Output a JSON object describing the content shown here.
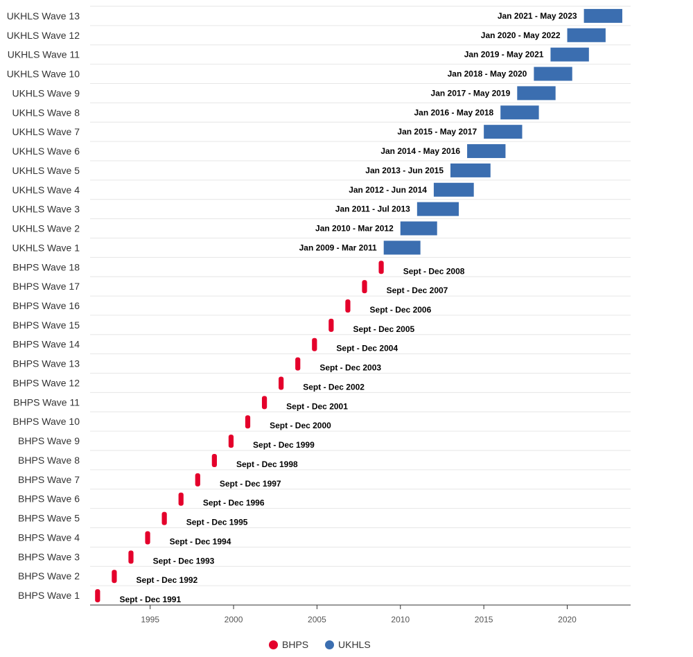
{
  "chart_data": {
    "type": "bar",
    "subtype": "timeline",
    "title": "",
    "xlabel": "",
    "ylabel": "",
    "xlim": [
      1991.4,
      2023.8
    ],
    "x_ticks": [
      1995,
      2000,
      2005,
      2010,
      2015,
      2020
    ],
    "grid": "horizontal",
    "legend_position": "bottom-center",
    "series": [
      {
        "name": "BHPS",
        "color": "#e4002b",
        "items": [
          {
            "category": "BHPS Wave 1",
            "start": 1991.7,
            "end": 1992.0,
            "label": "Sept - Dec 1991"
          },
          {
            "category": "BHPS Wave 2",
            "start": 1992.7,
            "end": 1993.0,
            "label": "Sept - Dec 1992"
          },
          {
            "category": "BHPS Wave 3",
            "start": 1993.7,
            "end": 1994.0,
            "label": "Sept - Dec 1993"
          },
          {
            "category": "BHPS Wave 4",
            "start": 1994.7,
            "end": 1995.0,
            "label": "Sept - Dec 1994"
          },
          {
            "category": "BHPS Wave 5",
            "start": 1995.7,
            "end": 1996.0,
            "label": "Sept - Dec 1995"
          },
          {
            "category": "BHPS Wave 6",
            "start": 1996.7,
            "end": 1997.0,
            "label": "Sept - Dec 1996"
          },
          {
            "category": "BHPS Wave 7",
            "start": 1997.7,
            "end": 1998.0,
            "label": "Sept - Dec 1997"
          },
          {
            "category": "BHPS Wave 8",
            "start": 1998.7,
            "end": 1999.0,
            "label": "Sept - Dec 1998"
          },
          {
            "category": "BHPS Wave 9",
            "start": 1999.7,
            "end": 2000.0,
            "label": "Sept - Dec 1999"
          },
          {
            "category": "BHPS Wave 10",
            "start": 2000.7,
            "end": 2001.0,
            "label": "Sept - Dec 2000"
          },
          {
            "category": "BHPS Wave 11",
            "start": 2001.7,
            "end": 2002.0,
            "label": "Sept - Dec 2001"
          },
          {
            "category": "BHPS Wave 12",
            "start": 2002.7,
            "end": 2003.0,
            "label": "Sept - Dec 2002"
          },
          {
            "category": "BHPS Wave 13",
            "start": 2003.7,
            "end": 2004.0,
            "label": "Sept - Dec 2003"
          },
          {
            "category": "BHPS Wave 14",
            "start": 2004.7,
            "end": 2005.0,
            "label": "Sept - Dec 2004"
          },
          {
            "category": "BHPS Wave 15",
            "start": 2005.7,
            "end": 2006.0,
            "label": "Sept - Dec 2005"
          },
          {
            "category": "BHPS Wave 16",
            "start": 2006.7,
            "end": 2007.0,
            "label": "Sept - Dec 2006"
          },
          {
            "category": "BHPS Wave 17",
            "start": 2007.7,
            "end": 2008.0,
            "label": "Sept - Dec 2007"
          },
          {
            "category": "BHPS Wave 18",
            "start": 2008.7,
            "end": 2009.0,
            "label": "Sept - Dec 2008"
          }
        ]
      },
      {
        "name": "UKHLS",
        "color": "#3b6eb0",
        "items": [
          {
            "category": "UKHLS Wave 1",
            "start": 2009.0,
            "end": 2011.2,
            "label": "Jan 2009 - Mar 2011"
          },
          {
            "category": "UKHLS Wave 2",
            "start": 2010.0,
            "end": 2012.2,
            "label": "Jan 2010 - Mar 2012"
          },
          {
            "category": "UKHLS Wave 3",
            "start": 2011.0,
            "end": 2013.5,
            "label": "Jan 2011 - Jul 2013"
          },
          {
            "category": "UKHLS Wave 4",
            "start": 2012.0,
            "end": 2014.4,
            "label": "Jan 2012 - Jun 2014"
          },
          {
            "category": "UKHLS Wave 5",
            "start": 2013.0,
            "end": 2015.4,
            "label": "Jan 2013 - Jun 2015"
          },
          {
            "category": "UKHLS Wave 6",
            "start": 2014.0,
            "end": 2016.3,
            "label": "Jan 2014 - May 2016"
          },
          {
            "category": "UKHLS Wave 7",
            "start": 2015.0,
            "end": 2017.3,
            "label": "Jan 2015 - May 2017"
          },
          {
            "category": "UKHLS Wave 8",
            "start": 2016.0,
            "end": 2018.3,
            "label": "Jan 2016 - May 2018"
          },
          {
            "category": "UKHLS Wave 9",
            "start": 2017.0,
            "end": 2019.3,
            "label": "Jan 2017 - May 2019"
          },
          {
            "category": "UKHLS Wave 10",
            "start": 2018.0,
            "end": 2020.3,
            "label": "Jan 2018 - May 2020"
          },
          {
            "category": "UKHLS Wave 11",
            "start": 2019.0,
            "end": 2021.3,
            "label": "Jan 2019 - May 2021"
          },
          {
            "category": "UKHLS Wave 12",
            "start": 2020.0,
            "end": 2022.3,
            "label": "Jan 2020 - May 2022"
          },
          {
            "category": "UKHLS Wave 13",
            "start": 2021.0,
            "end": 2023.3,
            "label": "Jan 2021 - May 2023"
          }
        ]
      }
    ]
  },
  "legend": {
    "items": [
      {
        "name": "BHPS",
        "color": "#e4002b"
      },
      {
        "name": "UKHLS",
        "color": "#3b6eb0"
      }
    ]
  }
}
